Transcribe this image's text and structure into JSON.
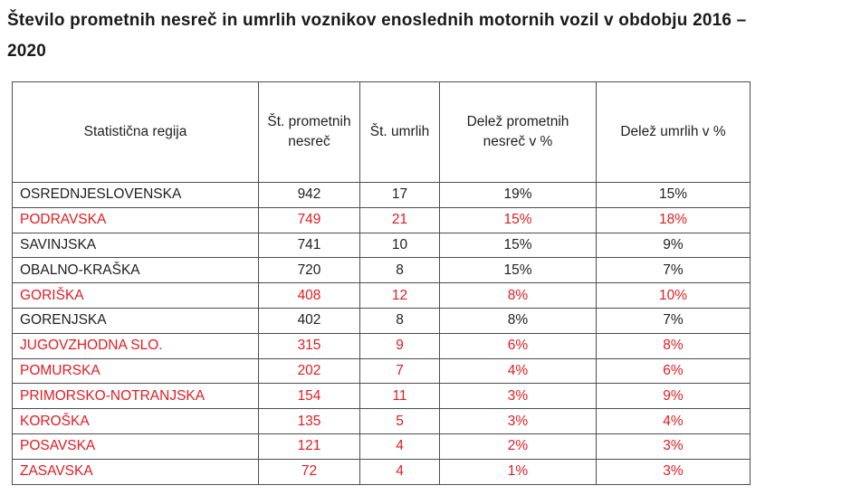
{
  "title": {
    "line1": "Število prometnih nesreč in umrlih voznikov enoslednih motornih vozil v obdobju 2016 –",
    "line2": "2020"
  },
  "colors": {
    "highlight_red": "#e21c21",
    "text_black": "#1f1f1f",
    "border": "#4d4d4d"
  },
  "table": {
    "columns": [
      "Statistična regija",
      "Št. prometnih nesreč",
      "Št. umrlih",
      "Delež prometnih nesreč v %",
      "Delež umrlih v %"
    ],
    "rows": [
      {
        "region": "OSREDNJESLOVENSKA",
        "accidents": "942",
        "deaths": "17",
        "accidents_pct": "19%",
        "deaths_pct": "15%",
        "highlight": false
      },
      {
        "region": "PODRAVSKA",
        "accidents": "749",
        "deaths": "21",
        "accidents_pct": "15%",
        "deaths_pct": "18%",
        "highlight": true
      },
      {
        "region": "SAVINJSKA",
        "accidents": "741",
        "deaths": "10",
        "accidents_pct": "15%",
        "deaths_pct": "9%",
        "highlight": false
      },
      {
        "region": "OBALNO-KRAŠKA",
        "accidents": "720",
        "deaths": "8",
        "accidents_pct": "15%",
        "deaths_pct": "7%",
        "highlight": false
      },
      {
        "region": "GORIŠKA",
        "accidents": "408",
        "deaths": "12",
        "accidents_pct": "8%",
        "deaths_pct": "10%",
        "highlight": true
      },
      {
        "region": "GORENJSKA",
        "accidents": "402",
        "deaths": "8",
        "accidents_pct": "8%",
        "deaths_pct": "7%",
        "highlight": false
      },
      {
        "region": "JUGOVZHODNA SLO.",
        "accidents": "315",
        "deaths": "9",
        "accidents_pct": "6%",
        "deaths_pct": "8%",
        "highlight": true
      },
      {
        "region": "POMURSKA",
        "accidents": "202",
        "deaths": "7",
        "accidents_pct": "4%",
        "deaths_pct": "6%",
        "highlight": true
      },
      {
        "region": "PRIMORSKO-NOTRANJSKA",
        "accidents": "154",
        "deaths": "11",
        "accidents_pct": "3%",
        "deaths_pct": "9%",
        "highlight": true
      },
      {
        "region": "KOROŠKA",
        "accidents": "135",
        "deaths": "5",
        "accidents_pct": "3%",
        "deaths_pct": "4%",
        "highlight": true
      },
      {
        "region": "POSAVSKA",
        "accidents": "121",
        "deaths": "4",
        "accidents_pct": "2%",
        "deaths_pct": "3%",
        "highlight": true
      },
      {
        "region": "ZASAVSKA",
        "accidents": "72",
        "deaths": "4",
        "accidents_pct": "1%",
        "deaths_pct": "3%",
        "highlight": true
      }
    ]
  }
}
